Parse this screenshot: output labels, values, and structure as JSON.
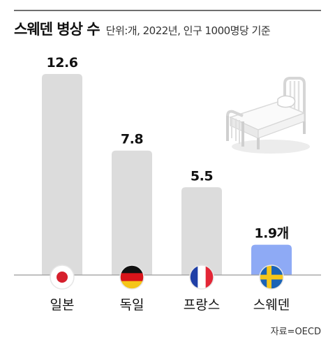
{
  "title": "스웨덴 병상 수",
  "subtitle": "단위:개, 2022년, 인구 1000명당 기준",
  "source": "자료=OECD",
  "chart_data": {
    "type": "bar",
    "categories": [
      "일본",
      "독일",
      "프랑스",
      "스웨덴"
    ],
    "values": [
      12.6,
      7.8,
      5.5,
      1.9
    ],
    "value_labels": [
      "12.6",
      "7.8",
      "5.5",
      "1.9개"
    ],
    "flags": [
      "japan-flag-icon",
      "germany-flag-icon",
      "france-flag-icon",
      "sweden-flag-icon"
    ],
    "highlight": "스웨덴",
    "ylim": [
      0,
      12.6
    ],
    "grid": false,
    "axes_visible": false,
    "colors": {
      "bar": "#dcdcdc",
      "highlight_bar": "#8eaaf5",
      "baseline": "#9a9a9a"
    }
  },
  "decoration": "hospital-bed-icon"
}
